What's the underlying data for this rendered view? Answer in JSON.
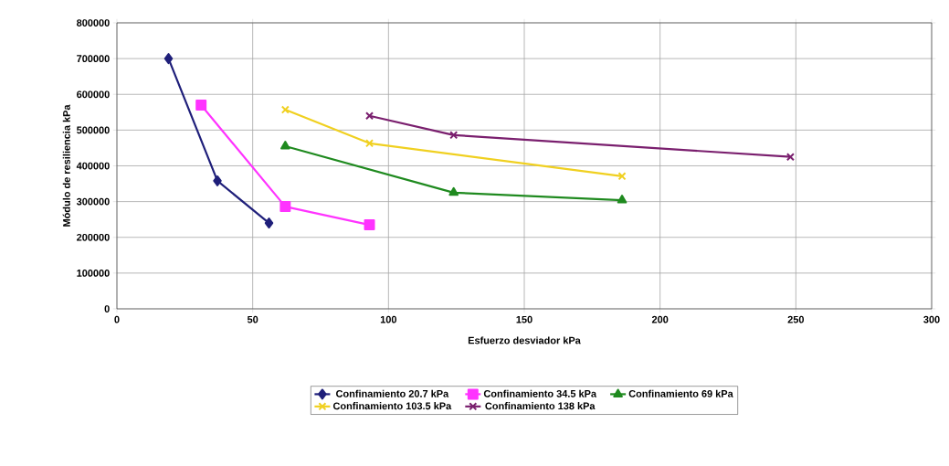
{
  "chart_data": {
    "type": "line",
    "xlabel": "Esfuerzo desviador kPa",
    "ylabel": "Módulo de resiliencia kPa",
    "xlim": [
      0,
      300
    ],
    "xticks": [
      0,
      50,
      100,
      150,
      200,
      250,
      300
    ],
    "ylim": [
      0,
      800000
    ],
    "yticks": [
      0,
      100000,
      200000,
      300000,
      400000,
      500000,
      600000,
      700000,
      800000
    ],
    "grid": true,
    "legend": "bottom",
    "line_style": "solid",
    "series": [
      {
        "name": "Confinamiento 20.7 kPa",
        "color": "#1f1f7a",
        "marker": "diamond",
        "x": [
          19,
          37,
          56
        ],
        "values": [
          700000,
          358000,
          240000
        ]
      },
      {
        "name": "Confinamiento 34.5 kPa",
        "color": "#ff33ff",
        "marker": "square",
        "x": [
          31,
          62,
          93
        ],
        "values": [
          570000,
          286000,
          235000
        ]
      },
      {
        "name": "Confinamiento 69 kPa",
        "color": "#1f8a1f",
        "marker": "triangle",
        "x": [
          62,
          124,
          186
        ],
        "values": [
          455000,
          325000,
          304000
        ]
      },
      {
        "name": "Confinamiento 103.5 kPa",
        "color": "#f0d020",
        "marker": "cross",
        "x": [
          62,
          93,
          186
        ],
        "values": [
          557000,
          463000,
          371000
        ]
      },
      {
        "name": "Confinamiento 138 kPa",
        "color": "#7a1f6e",
        "marker": "cross",
        "x": [
          93,
          124,
          248
        ],
        "values": [
          540000,
          486000,
          425000
        ]
      }
    ]
  }
}
